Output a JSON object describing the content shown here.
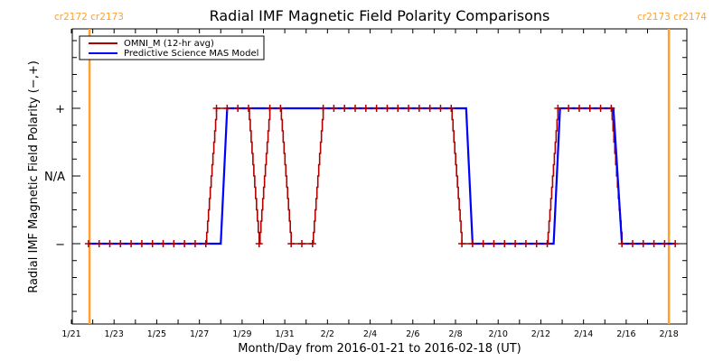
{
  "chart_data": {
    "type": "line",
    "title": "Radial IMF Magnetic Field Polarity Comparisons",
    "xlabel": "Month/Day from 2016-01-21 to 2016-02-18 (UT)",
    "ylabel": "Radial IMF Magnetic Field Polarity (−,+)",
    "x_unit": "days since 2016-01-21 00:00 UT",
    "xlim": [
      0,
      28.8
    ],
    "ylim": [
      -2,
      2.2
    ],
    "x_ticks": [
      {
        "day": 0,
        "label": "1/21"
      },
      {
        "day": 2,
        "label": "1/23"
      },
      {
        "day": 4,
        "label": "1/25"
      },
      {
        "day": 6,
        "label": "1/27"
      },
      {
        "day": 8,
        "label": "1/29"
      },
      {
        "day": 10,
        "label": "1/31"
      },
      {
        "day": 12,
        "label": "2/2"
      },
      {
        "day": 14,
        "label": "2/4"
      },
      {
        "day": 16,
        "label": "2/6"
      },
      {
        "day": 18,
        "label": "2/8"
      },
      {
        "day": 20,
        "label": "2/10"
      },
      {
        "day": 22,
        "label": "2/12"
      },
      {
        "day": 24,
        "label": "2/14"
      },
      {
        "day": 26,
        "label": "2/16"
      },
      {
        "day": 28,
        "label": "2/18"
      }
    ],
    "y_ticks": [
      {
        "value": 1,
        "label": "+"
      },
      {
        "value": 0,
        "label": "N/A"
      },
      {
        "value": -1,
        "label": "−"
      }
    ],
    "legend": {
      "placement": "top-left",
      "entries": [
        {
          "name": "OMNI_M (12-hr avg)",
          "color": "#b00000"
        },
        {
          "name": "Predictive Science MAS Model",
          "color": "#0000ff"
        }
      ]
    },
    "carrington": {
      "color": "#ffa030",
      "markers": [
        {
          "day": 0.85,
          "label": "cr2172 cr2173",
          "position": "left"
        },
        {
          "day": 28.0,
          "label": "cr2173 cr2174",
          "position": "right"
        }
      ]
    },
    "series": [
      {
        "name": "OMNI_M (12-hr avg)",
        "color": "#b00000",
        "markers": true,
        "points": [
          [
            0.8,
            -1
          ],
          [
            1.3,
            -1
          ],
          [
            1.8,
            -1
          ],
          [
            2.3,
            -1
          ],
          [
            2.8,
            -1
          ],
          [
            3.3,
            -1
          ],
          [
            3.8,
            -1
          ],
          [
            4.3,
            -1
          ],
          [
            4.8,
            -1
          ],
          [
            5.3,
            -1
          ],
          [
            5.8,
            -1
          ],
          [
            6.3,
            -1
          ],
          [
            6.8,
            1
          ],
          [
            7.3,
            1
          ],
          [
            7.8,
            1
          ],
          [
            8.3,
            1
          ],
          [
            8.8,
            -1
          ],
          [
            9.3,
            1
          ],
          [
            9.8,
            1
          ],
          [
            10.3,
            -1
          ],
          [
            10.8,
            -1
          ],
          [
            11.3,
            -1
          ],
          [
            11.8,
            1
          ],
          [
            12.3,
            1
          ],
          [
            12.8,
            1
          ],
          [
            13.3,
            1
          ],
          [
            13.8,
            1
          ],
          [
            14.3,
            1
          ],
          [
            14.8,
            1
          ],
          [
            15.3,
            1
          ],
          [
            15.8,
            1
          ],
          [
            16.3,
            1
          ],
          [
            16.8,
            1
          ],
          [
            17.3,
            1
          ],
          [
            17.8,
            1
          ],
          [
            18.3,
            -1
          ],
          [
            18.8,
            -1
          ],
          [
            19.3,
            -1
          ],
          [
            19.8,
            -1
          ],
          [
            20.3,
            -1
          ],
          [
            20.8,
            -1
          ],
          [
            21.3,
            -1
          ],
          [
            21.8,
            -1
          ],
          [
            22.3,
            -1
          ],
          [
            22.8,
            1
          ],
          [
            23.3,
            1
          ],
          [
            23.8,
            1
          ],
          [
            24.3,
            1
          ],
          [
            24.8,
            1
          ],
          [
            25.3,
            1
          ],
          [
            25.8,
            -1
          ],
          [
            26.3,
            -1
          ],
          [
            26.8,
            -1
          ],
          [
            27.3,
            -1
          ],
          [
            27.8,
            -1
          ],
          [
            28.3,
            -1
          ]
        ]
      },
      {
        "name": "Predictive Science MAS Model",
        "color": "#0000ff",
        "markers": false,
        "points": [
          [
            0.8,
            -1
          ],
          [
            7.0,
            -1
          ],
          [
            7.3,
            1
          ],
          [
            18.5,
            1
          ],
          [
            18.8,
            -1
          ],
          [
            22.6,
            -1
          ],
          [
            22.9,
            1
          ],
          [
            25.4,
            1
          ],
          [
            25.8,
            -1
          ],
          [
            28.3,
            -1
          ]
        ]
      }
    ]
  }
}
